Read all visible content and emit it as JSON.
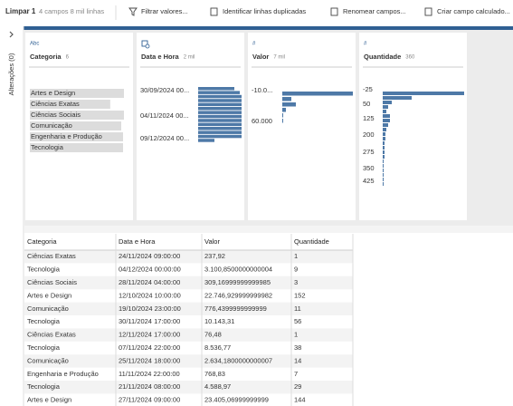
{
  "toolbar": {
    "title": "Limpar 1",
    "info": "4 campos  8 mil linhas",
    "actions": [
      "Filtrar valores...",
      "Identificar linhas duplicadas",
      "Renomear campos...",
      "Criar campo calculado..."
    ]
  },
  "sidebar": {
    "label": "Alterações (0)"
  },
  "profile": {
    "cards": [
      {
        "icon": "Abc",
        "name": "Categoria",
        "count": "6",
        "items": [
          {
            "label": "Artes e Design",
            "count": 103
          },
          {
            "label": "Ciências Exatas",
            "count": 88
          },
          {
            "label": "Ciências Sociais",
            "count": 103
          },
          {
            "label": "Comunicação",
            "count": 100
          },
          {
            "label": "Engenharia e Produção",
            "count": 102
          },
          {
            "label": "Tecnologia",
            "count": 102
          }
        ]
      },
      {
        "name": "Data e Hora",
        "count": "2 mil",
        "axis_labels": [
          "30/09/2024 00...",
          "04/11/2024 00...",
          "09/12/2024 00..."
        ],
        "bars": [
          40,
          46,
          48,
          48,
          48,
          48,
          48,
          48,
          48,
          48,
          48,
          48,
          48,
          18
        ]
      },
      {
        "icon": "#",
        "name": "Valor",
        "count": "7 mil",
        "axis_labels": [
          "-10.0...",
          "60.000"
        ],
        "bars": [
          78,
          10,
          15,
          4,
          1,
          1
        ]
      },
      {
        "icon": "#",
        "name": "Quantidade",
        "count": "360",
        "axis_labels": [
          "-25",
          "50",
          "125",
          "200",
          "275",
          "350",
          "425"
        ],
        "bars": [
          90,
          32,
          10,
          6,
          4,
          8,
          8,
          6,
          4,
          3,
          3,
          2,
          2,
          2,
          2,
          1,
          1,
          1,
          1,
          1,
          1
        ]
      }
    ]
  },
  "table": {
    "columns": [
      "Categoria",
      "Data e Hora",
      "Valor",
      "Quantidade"
    ],
    "rows": [
      [
        "Ciências Exatas",
        "24/11/2024 09:00:00",
        "237,92",
        "1"
      ],
      [
        "Tecnologia",
        "04/12/2024 00:00:00",
        "3.100,8500000000004",
        "9"
      ],
      [
        "Ciências Sociais",
        "28/11/2024 04:00:00",
        "309,16999999999985",
        "3"
      ],
      [
        "Artes e Design",
        "12/10/2024 10:00:00",
        "22.746,929999999982",
        "152"
      ],
      [
        "Comunicação",
        "19/10/2024 23:00:00",
        "776,4399999999999",
        "11"
      ],
      [
        "Tecnologia",
        "30/11/2024 17:00:00",
        "10.143,31",
        "56"
      ],
      [
        "Ciências Exatas",
        "12/11/2024 17:00:00",
        "76,48",
        "1"
      ],
      [
        "Tecnologia",
        "07/11/2024 22:00:00",
        "8.536,77",
        "38"
      ],
      [
        "Comunicação",
        "25/11/2024 18:00:00",
        "2.634,1800000000007",
        "14"
      ],
      [
        "Engenharia e Produção",
        "11/11/2024 22:00:00",
        "768,83",
        "7"
      ],
      [
        "Tecnologia",
        "21/11/2024 08:00:00",
        "4.588,97",
        "29"
      ],
      [
        "Artes e Design",
        "27/11/2024 09:00:00",
        "23.405,06999999999",
        "144"
      ]
    ]
  }
}
